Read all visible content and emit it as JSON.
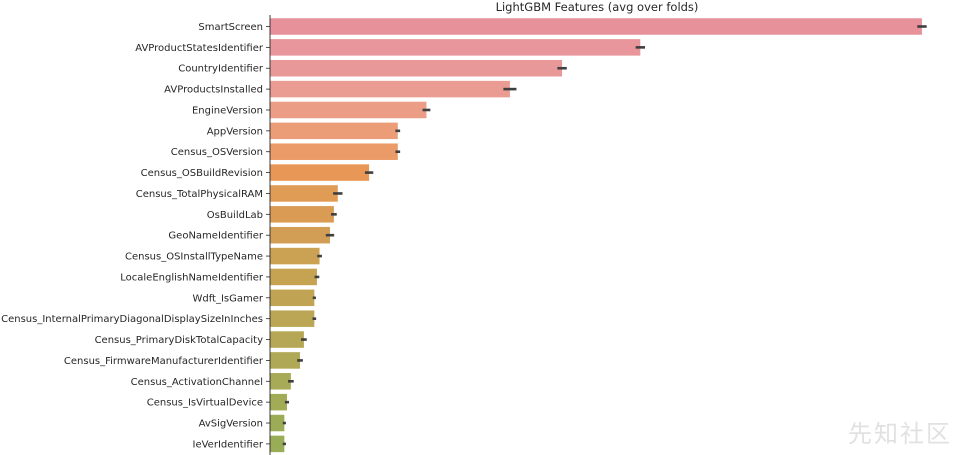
{
  "watermark": "先知社区",
  "chart_data": {
    "type": "bar",
    "orientation": "horizontal",
    "title": "LightGBM Features (avg over folds)",
    "xlabel": "",
    "ylabel": "",
    "grid": false,
    "error_bars": true,
    "xlim": [
      0,
      255
    ],
    "categories": [
      "SmartScreen",
      "AVProductStatesIdentifier",
      "CountryIdentifier",
      "AVProductsInstalled",
      "EngineVersion",
      "AppVersion",
      "Census_OSVersion",
      "Census_OSBuildRevision",
      "Census_TotalPhysicalRAM",
      "OsBuildLab",
      "GeoNameIdentifier",
      "Census_OSInstallTypeName",
      "LocaleEnglishNameIdentifier",
      "Wdft_IsGamer",
      "Census_InternalPrimaryDiagonalDisplaySizeInInches",
      "Census_PrimaryDiskTotalCapacity",
      "Census_FirmwareManufacturerIdentifier",
      "Census_ActivationChannel",
      "Census_IsVirtualDevice",
      "AvSigVersion",
      "IeVerIdentifier"
    ],
    "values": [
      250,
      142,
      112,
      92,
      60,
      49,
      49,
      38,
      26,
      24.5,
      23,
      19,
      18,
      17,
      17,
      13,
      11.5,
      8,
      6.5,
      5.5,
      5.5
    ],
    "errors": [
      1.8,
      1.8,
      1.8,
      2.5,
      1.5,
      0.9,
      0.9,
      1.6,
      1.8,
      1.1,
      1.6,
      0.9,
      0.9,
      0.6,
      0.7,
      1.1,
      1.1,
      1.1,
      0.8,
      0.6,
      0.6
    ],
    "colors": [
      "#e7919a",
      "#e8969b",
      "#e9989a",
      "#ea9b92",
      "#eb9e85",
      "#eb9d78",
      "#ea9b68",
      "#e99757",
      "#e09c55",
      "#da9c55",
      "#d29e55",
      "#cba153",
      "#c6a353",
      "#c1a453",
      "#bba655",
      "#b5a755",
      "#afa856",
      "#a7aa56",
      "#a2ab56",
      "#9cac56",
      "#99ac56"
    ]
  }
}
